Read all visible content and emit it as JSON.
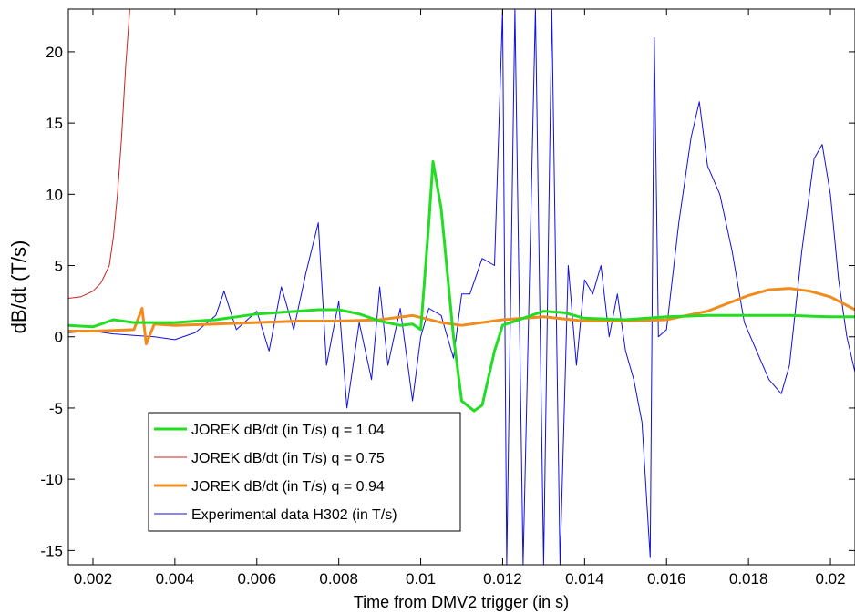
{
  "chart_data": {
    "type": "line",
    "xlabel": "Time from DMV2 trigger (in s)",
    "ylabel": "dB/dt (T/s)",
    "xlim": [
      0.0014,
      0.0206
    ],
    "ylim": [
      -16,
      23
    ],
    "x_ticks": [
      "0.002",
      "0.004",
      "0.006",
      "0.008",
      "0.01",
      "0.012",
      "0.014",
      "0.016",
      "0.018",
      "0.02"
    ],
    "y_ticks": [
      "20",
      "15",
      "10",
      "5",
      "0",
      "-5",
      "-10",
      "-15"
    ],
    "x_tick_values": [
      0.002,
      0.004,
      0.006,
      0.008,
      0.01,
      0.012,
      0.014,
      0.016,
      0.018,
      0.02
    ],
    "y_tick_values": [
      20,
      15,
      10,
      5,
      0,
      -5,
      -10,
      -15
    ],
    "grid": false,
    "legend_position": "bottom-left",
    "series": [
      {
        "name": "JOREK dB/dt (in T/s) q = 1.04",
        "color": "#22dd22",
        "width": 3,
        "x": [
          0.0014,
          0.002,
          0.0025,
          0.003,
          0.004,
          0.005,
          0.006,
          0.007,
          0.0075,
          0.008,
          0.0085,
          0.009,
          0.0095,
          0.0098,
          0.01,
          0.0102,
          0.0103,
          0.0105,
          0.0108,
          0.011,
          0.0113,
          0.0115,
          0.0118,
          0.012,
          0.0125,
          0.013,
          0.0135,
          0.014,
          0.015,
          0.016,
          0.017,
          0.018,
          0.019,
          0.02,
          0.0206
        ],
        "y": [
          0.8,
          0.7,
          1.2,
          1.0,
          1.0,
          1.2,
          1.6,
          1.8,
          1.9,
          1.9,
          1.6,
          1.1,
          0.8,
          0.9,
          0.5,
          8.0,
          12.3,
          9.0,
          0.0,
          -4.5,
          -5.2,
          -4.8,
          -1.0,
          0.8,
          1.3,
          1.8,
          1.7,
          1.3,
          1.2,
          1.4,
          1.5,
          1.5,
          1.5,
          1.4,
          1.4
        ]
      },
      {
        "name": "JOREK dB/dt (in T/s) q = 0.75",
        "color": "#cc2222",
        "width": 1,
        "x": [
          0.0014,
          0.0017,
          0.002,
          0.0022,
          0.0024,
          0.0025,
          0.0026,
          0.0027,
          0.0028,
          0.0029
        ],
        "y": [
          2.7,
          2.8,
          3.2,
          3.8,
          5.0,
          7.0,
          10.0,
          14.0,
          19.0,
          23.0
        ]
      },
      {
        "name": "JOREK dB/dt (in T/s) q = 0.94",
        "color": "#f08c1e",
        "width": 3,
        "x": [
          0.0014,
          0.002,
          0.003,
          0.0032,
          0.0033,
          0.0035,
          0.004,
          0.005,
          0.006,
          0.007,
          0.008,
          0.009,
          0.0098,
          0.0105,
          0.011,
          0.012,
          0.013,
          0.014,
          0.015,
          0.016,
          0.017,
          0.018,
          0.0185,
          0.019,
          0.0195,
          0.02,
          0.0206
        ],
        "y": [
          0.4,
          0.4,
          0.5,
          2.0,
          -0.5,
          0.9,
          0.8,
          0.9,
          1.0,
          1.1,
          1.1,
          1.2,
          1.5,
          1.0,
          0.8,
          1.2,
          1.4,
          1.1,
          1.1,
          1.2,
          1.8,
          2.9,
          3.3,
          3.4,
          3.2,
          2.8,
          1.9
        ]
      },
      {
        "name": "Experimental data H302 (in T/s)",
        "color": "#1010dd",
        "width": 1,
        "x": [
          0.0014,
          0.002,
          0.0025,
          0.003,
          0.0035,
          0.004,
          0.0045,
          0.005,
          0.0052,
          0.0055,
          0.006,
          0.0063,
          0.0066,
          0.0069,
          0.0072,
          0.0075,
          0.0077,
          0.008,
          0.0082,
          0.0085,
          0.0088,
          0.009,
          0.0092,
          0.0095,
          0.0098,
          0.01,
          0.0102,
          0.0105,
          0.0108,
          0.011,
          0.0112,
          0.0115,
          0.0118,
          0.012,
          0.0121,
          0.0123,
          0.0125,
          0.0128,
          0.013,
          0.0132,
          0.0134,
          0.0136,
          0.0138,
          0.014,
          0.0142,
          0.0144,
          0.0146,
          0.0148,
          0.015,
          0.0152,
          0.0154,
          0.0156,
          0.0157,
          0.0158,
          0.016,
          0.0163,
          0.0166,
          0.0168,
          0.017,
          0.0173,
          0.0176,
          0.0179,
          0.0182,
          0.0185,
          0.0188,
          0.019,
          0.0193,
          0.0196,
          0.0198,
          0.02,
          0.0202,
          0.0204,
          0.0206
        ],
        "y": [
          0.3,
          0.4,
          0.2,
          0.1,
          0.0,
          -0.2,
          0.3,
          1.5,
          3.2,
          0.5,
          1.8,
          -1.0,
          3.5,
          0.5,
          4.5,
          8.0,
          -2.0,
          2.5,
          -5.0,
          1.0,
          -3.0,
          3.5,
          -2.0,
          2.0,
          -4.5,
          0.0,
          2.0,
          1.5,
          -1.5,
          3.0,
          3.0,
          5.5,
          5.0,
          23.0,
          -16.0,
          23.0,
          -16.0,
          23.0,
          -16.0,
          23.0,
          -16.0,
          5.0,
          -2.0,
          4.0,
          3.0,
          5.0,
          0.0,
          3.0,
          -1.0,
          -3.0,
          -6.0,
          -15.5,
          21.0,
          0.0,
          0.5,
          8.0,
          14.0,
          16.5,
          12.0,
          10.0,
          6.0,
          1.0,
          -1.0,
          -3.0,
          -4.0,
          -2.0,
          6.0,
          12.5,
          13.5,
          10.0,
          4.0,
          0.0,
          -2.5
        ]
      }
    ]
  }
}
